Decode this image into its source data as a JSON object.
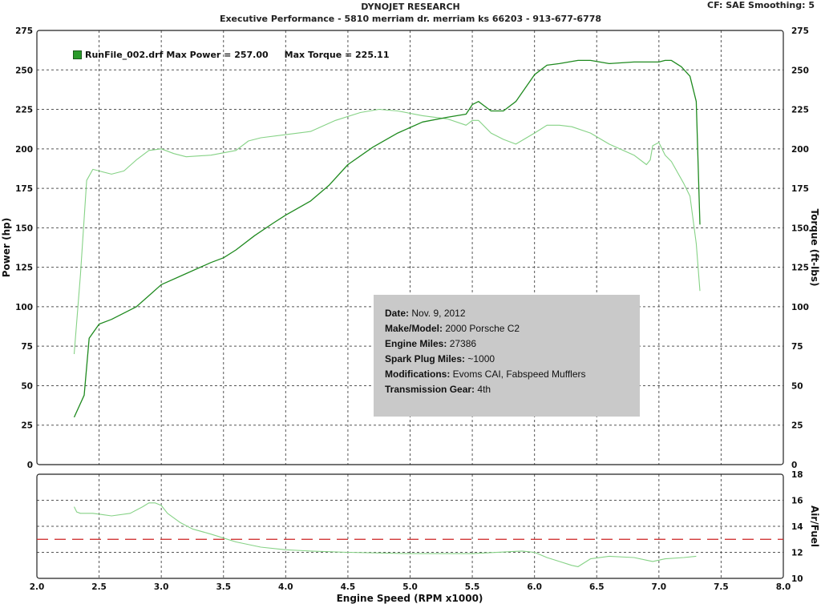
{
  "header": {
    "title": "DYNOJET RESEARCH",
    "subtitle": "Executive Performance - 5810 merriam dr. merriam ks 66203 - 913-677-6778",
    "corner": "CF: SAE  Smoothing: 5"
  },
  "legend": {
    "run_file": "RunFile_002.drf",
    "max_power": "Max Power = 257.00",
    "max_torque": "Max Torque = 225.11"
  },
  "info": {
    "rows": [
      {
        "label": "Date:",
        "value": "Nov. 9, 2012"
      },
      {
        "label": "Make/Model:",
        "value": "2000 Porsche C2"
      },
      {
        "label": "Engine Miles:",
        "value": "27386"
      },
      {
        "label": "Spark Plug Miles:",
        "value": "~1000"
      },
      {
        "label": "Modifications:",
        "value": "Evoms CAI, Fabspeed Mufflers"
      },
      {
        "label": "Transmission Gear:",
        "value": "4th"
      }
    ]
  },
  "chart_data": [
    {
      "type": "line",
      "xlabel": "Engine Speed (RPM x1000)",
      "ylabel": "Power (hp)",
      "y2label": "Torque (ft-lbs)",
      "xlim": [
        2.0,
        8.0
      ],
      "ylim": [
        0,
        275
      ],
      "xticks": [
        "2.0",
        "2.5",
        "3.0",
        "3.5",
        "4.0",
        "4.5",
        "5.0",
        "5.5",
        "6.0",
        "6.5",
        "7.0",
        "7.5",
        "8.0"
      ],
      "yticks": [
        "0",
        "25",
        "50",
        "75",
        "100",
        "125",
        "150",
        "175",
        "200",
        "225",
        "250",
        "275"
      ],
      "grid": true,
      "colors": {
        "power": "#1f8a1f",
        "torque": "#86d286"
      },
      "series": [
        {
          "name": "Max Power = 257.00",
          "x": [
            2.3,
            2.38,
            2.42,
            2.5,
            2.6,
            2.7,
            2.8,
            2.9,
            3.0,
            3.2,
            3.4,
            3.5,
            3.6,
            3.75,
            3.9,
            4.0,
            4.2,
            4.35,
            4.5,
            4.7,
            4.9,
            5.1,
            5.3,
            5.45,
            5.5,
            5.55,
            5.65,
            5.75,
            5.85,
            6.0,
            6.1,
            6.2,
            6.35,
            6.45,
            6.6,
            6.8,
            6.92,
            6.95,
            7.0,
            7.05,
            7.1,
            7.18,
            7.25,
            7.3,
            7.33
          ],
          "y": [
            30,
            44,
            80,
            89,
            92,
            96,
            100,
            107,
            114,
            121,
            128,
            131,
            136,
            145,
            153,
            158,
            167,
            177,
            190,
            201,
            210,
            217,
            220,
            222,
            228,
            230,
            224,
            224,
            230,
            247,
            253,
            254,
            256,
            256,
            254,
            255,
            255,
            255,
            255,
            256,
            256,
            252,
            246,
            230,
            152
          ]
        },
        {
          "name": "Max Torque = 225.11",
          "x": [
            2.3,
            2.35,
            2.4,
            2.45,
            2.5,
            2.6,
            2.7,
            2.8,
            2.9,
            3.0,
            3.1,
            3.2,
            3.4,
            3.6,
            3.7,
            3.8,
            4.0,
            4.2,
            4.4,
            4.6,
            4.75,
            4.9,
            5.1,
            5.3,
            5.45,
            5.5,
            5.55,
            5.65,
            5.75,
            5.85,
            6.0,
            6.1,
            6.2,
            6.3,
            6.45,
            6.6,
            6.8,
            6.9,
            6.93,
            6.95,
            7.0,
            7.05,
            7.1,
            7.2,
            7.25,
            7.3,
            7.33
          ],
          "y": [
            70,
            120,
            180,
            187,
            186,
            184,
            186,
            193,
            199,
            200,
            197,
            195,
            196,
            199,
            205,
            207,
            209,
            211,
            218,
            223,
            225,
            224,
            221,
            219,
            215,
            218,
            218,
            210,
            206,
            203,
            210,
            215,
            215,
            214,
            210,
            203,
            196,
            190,
            193,
            202,
            204,
            196,
            192,
            178,
            170,
            140,
            110
          ]
        }
      ]
    },
    {
      "type": "line",
      "xlabel": "Engine Speed (RPM x1000)",
      "ylabel": "Air/Fuel",
      "xlim": [
        2.0,
        8.0
      ],
      "ylim": [
        10,
        18
      ],
      "xticks": [
        "2.0",
        "2.5",
        "3.0",
        "3.5",
        "4.0",
        "4.5",
        "5.0",
        "5.5",
        "6.0",
        "6.5",
        "7.0",
        "7.5",
        "8.0"
      ],
      "yticks": [
        "10",
        "12",
        "14",
        "16",
        "18"
      ],
      "reference_line": 13,
      "colors": {
        "afr": "#86d286",
        "reference": "#cc2222"
      },
      "series": [
        {
          "name": "Air/Fuel",
          "x": [
            2.3,
            2.32,
            2.35,
            2.45,
            2.6,
            2.75,
            2.85,
            2.9,
            2.95,
            3.0,
            3.05,
            3.15,
            3.25,
            3.4,
            3.6,
            3.8,
            4.0,
            4.2,
            4.5,
            5.0,
            5.5,
            5.9,
            6.0,
            6.1,
            6.2,
            6.3,
            6.35,
            6.45,
            6.6,
            6.8,
            6.9,
            6.95,
            7.05,
            7.2,
            7.3
          ],
          "y": [
            15.5,
            15.1,
            15.0,
            15.0,
            14.8,
            15.0,
            15.5,
            15.8,
            15.8,
            15.6,
            15.0,
            14.3,
            13.8,
            13.4,
            12.8,
            12.4,
            12.2,
            12.1,
            12.0,
            11.9,
            11.9,
            12.1,
            12.0,
            11.6,
            11.3,
            11.0,
            10.9,
            11.5,
            11.7,
            11.6,
            11.4,
            11.3,
            11.5,
            11.6,
            11.7
          ]
        }
      ]
    }
  ]
}
